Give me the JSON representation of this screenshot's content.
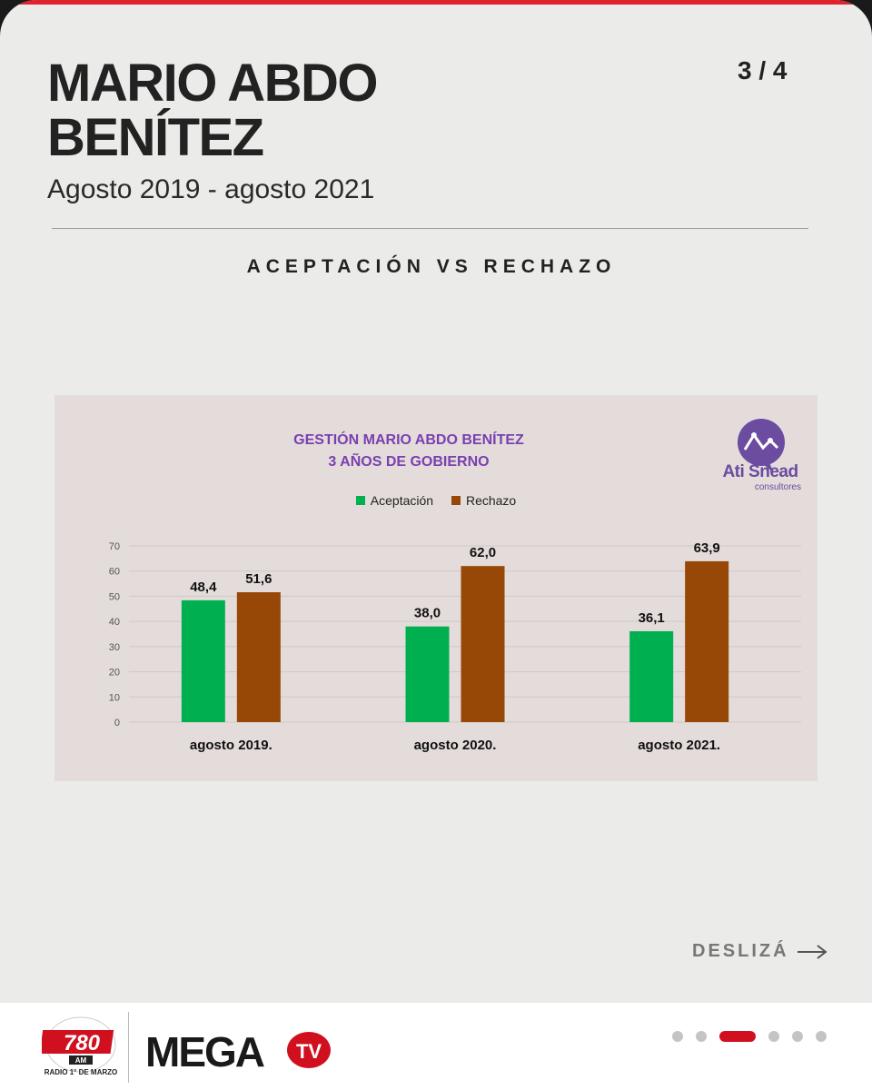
{
  "header": {
    "title_line1": "MARIO ABDO",
    "title_line2": "BENÍTEZ",
    "subtitle": "Agosto 2019 - agosto 2021",
    "page_indicator": "3 / 4",
    "section": "ACEPTACIÓN VS RECHAZO"
  },
  "chart_brand": {
    "name": "Ati Snead",
    "sub": "consultores"
  },
  "chart_data": {
    "type": "bar",
    "title_line1": "GESTIÓN MARIO ABDO BENÍTEZ",
    "title_line2": "3 AÑOS DE GOBIERNO",
    "categories": [
      "agosto 2019.",
      "agosto 2020.",
      "agosto 2021."
    ],
    "series": [
      {
        "name": "Aceptación",
        "color": "#00b050",
        "values": [
          48.4,
          38.0,
          36.1
        ],
        "labels": [
          "48,4",
          "38,0",
          "36,1"
        ]
      },
      {
        "name": "Rechazo",
        "color": "#974706",
        "values": [
          51.6,
          62.0,
          63.9
        ],
        "labels": [
          "51,6",
          "62,0",
          "63,9"
        ]
      }
    ],
    "ylim": [
      0,
      70
    ],
    "yticks": [
      0,
      10,
      20,
      30,
      40,
      50,
      60,
      70
    ],
    "grid": true,
    "legend": "top-center"
  },
  "footer": {
    "swipe_label": "DESLIZÁ",
    "logo780_number": "780",
    "logo780_am": "AM",
    "logo780_caption": "RADIO 1° DE MARZO",
    "megatv_text": "MEGA",
    "megatv_tv": "TV",
    "dots_total": 6,
    "dots_active": 3
  },
  "colors": {
    "accent_red": "#d0101f",
    "brand_purple": "#7a3fb0"
  }
}
